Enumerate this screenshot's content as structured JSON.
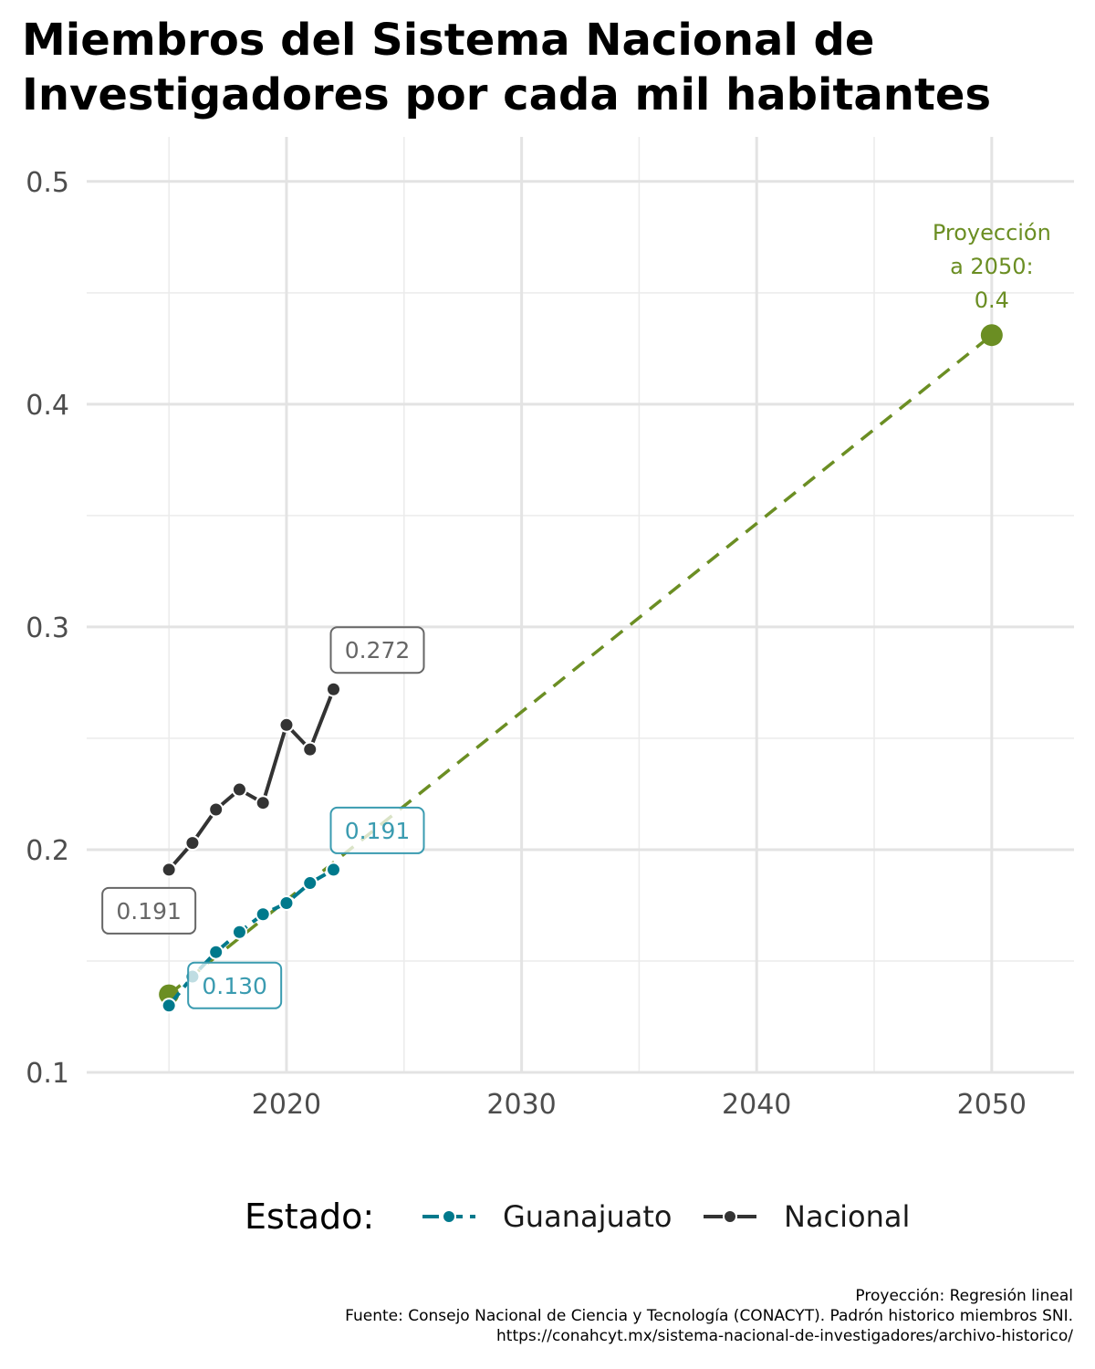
{
  "chart_data": {
    "type": "line",
    "title": "Miembros del Sistema Nacional de Investigadores por cada mil habitantes",
    "xlabel": "",
    "ylabel": "",
    "xlim": [
      2011.5,
      2053.5
    ],
    "ylim": [
      0.1,
      0.52
    ],
    "x_ticks": [
      2020,
      2030,
      2040,
      2050
    ],
    "y_ticks": [
      0.1,
      0.2,
      0.3,
      0.4,
      0.5
    ],
    "grid": true,
    "legend_position": "bottom",
    "series": [
      {
        "name": "Guanajuato",
        "color": "#00798c",
        "linestyle": "dashed",
        "x": [
          2015,
          2016,
          2017,
          2018,
          2019,
          2020,
          2021,
          2022
        ],
        "y": [
          0.13,
          0.143,
          0.154,
          0.163,
          0.171,
          0.176,
          0.185,
          0.191
        ]
      },
      {
        "name": "Nacional",
        "color": "#333333",
        "linestyle": "solid",
        "x": [
          2015,
          2016,
          2017,
          2018,
          2019,
          2020,
          2021,
          2022
        ],
        "y": [
          0.191,
          0.203,
          0.218,
          0.227,
          0.221,
          0.256,
          0.245,
          0.272
        ]
      }
    ],
    "projection": {
      "color": "#6b8e23",
      "linestyle": "dashed",
      "x": [
        2015,
        2050
      ],
      "y": [
        0.135,
        0.431
      ],
      "annotation": [
        "Proyección",
        "a 2050:",
        "0.4"
      ]
    },
    "data_labels": [
      {
        "text": "0.191",
        "series": "Nacional",
        "x": 2015,
        "y": 0.191,
        "color": "#666666"
      },
      {
        "text": "0.272",
        "series": "Nacional",
        "x": 2022,
        "y": 0.272,
        "color": "#666666"
      },
      {
        "text": "0.130",
        "series": "Guanajuato",
        "x": 2015,
        "y": 0.13,
        "color": "#3a9bb0"
      },
      {
        "text": "0.191",
        "series": "Guanajuato",
        "x": 2022,
        "y": 0.191,
        "color": "#3a9bb0"
      }
    ]
  },
  "legend": {
    "title": "Estado:",
    "items": [
      {
        "label": "Guanajuato",
        "color": "#00798c"
      },
      {
        "label": "Nacional",
        "color": "#333333"
      }
    ]
  },
  "caption": {
    "line1": "Proyección: Regresión lineal",
    "line2": "Fuente: Consejo Nacional de Ciencia y Tecnología (CONACYT). Padrón historico miembros SNI.",
    "line3": "https://conahcyt.mx/sistema-nacional-de-investigadores/archivo-historico/"
  }
}
